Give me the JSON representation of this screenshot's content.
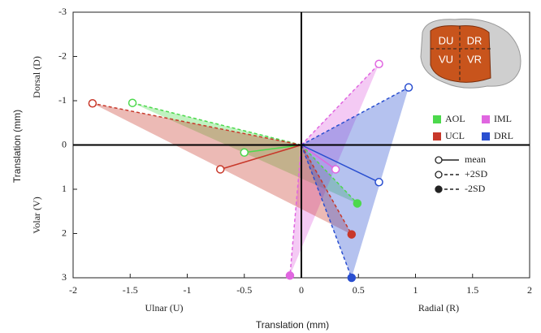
{
  "chart_data": {
    "type": "scatter",
    "x_label": "Translation (mm)",
    "y_label": "Translation (mm)",
    "x_annotations": [
      "Ulnar (U)",
      "Radial (R)"
    ],
    "y_annotations": [
      "Dorsal (D)",
      "Volar (V)"
    ],
    "xlim": [
      -2,
      2
    ],
    "xticks": [
      -2,
      -1.5,
      -1,
      -0.5,
      0,
      0.5,
      1,
      1.5,
      2
    ],
    "ylim": [
      -3,
      3
    ],
    "yticks": [
      -3,
      -2,
      -1,
      0,
      1,
      2,
      3
    ],
    "y_inverted": true,
    "point_labels": [
      "mean",
      "+2SD",
      "-2SD"
    ],
    "point_filled": [
      false,
      false,
      true
    ],
    "point_dashed": [
      false,
      true,
      true
    ],
    "series": [
      {
        "name": "AOL",
        "color": "#4cd94c",
        "x": [
          -0.5,
          -1.48,
          0.49
        ],
        "y": [
          0.17,
          -0.95,
          1.32
        ]
      },
      {
        "name": "IML",
        "color": "#e066e0",
        "x": [
          0.3,
          0.68,
          -0.1
        ],
        "y": [
          0.55,
          -1.83,
          2.95
        ]
      },
      {
        "name": "UCL",
        "color": "#c8382a",
        "x": [
          -0.71,
          -1.83,
          0.44
        ],
        "y": [
          0.55,
          -0.94,
          2.02
        ]
      },
      {
        "name": "DRL",
        "color": "#2a4fd0",
        "x": [
          0.68,
          0.94,
          0.44
        ],
        "y": [
          0.84,
          -1.3,
          3.0
        ]
      }
    ],
    "inset_labels": [
      "DU",
      "DR",
      "VU",
      "VR"
    ]
  }
}
